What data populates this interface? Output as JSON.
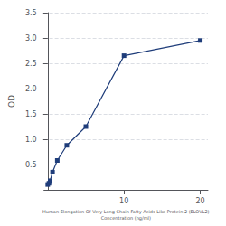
{
  "chart_data": {
    "type": "line",
    "x": [
      0.0,
      0.156,
      0.313,
      0.625,
      1.25,
      2.5,
      5.0,
      10.0,
      20.0
    ],
    "values": [
      0.105,
      0.13,
      0.18,
      0.35,
      0.58,
      0.88,
      1.25,
      2.65,
      2.95
    ],
    "color": "#1f3d7a",
    "marker": "square",
    "xlabel": "Human Elongation Of Very Long Chain Fatty Acids Like Protein 2 (ELOVL2)\nConcentration (ng/ml)",
    "ylabel": "OD",
    "xlim": [
      -0.5,
      21
    ],
    "xticks": [
      10,
      20
    ],
    "ylim": [
      0,
      3.5
    ],
    "yticks": [
      0.5,
      {
        "value": 1.0,
        "label": "1.0"
      },
      1.5,
      {
        "value": 2.0,
        "label": "2.0"
      },
      2.5,
      {
        "value": 3.0,
        "label": "3.0"
      },
      3.5
    ],
    "grid": true
  }
}
